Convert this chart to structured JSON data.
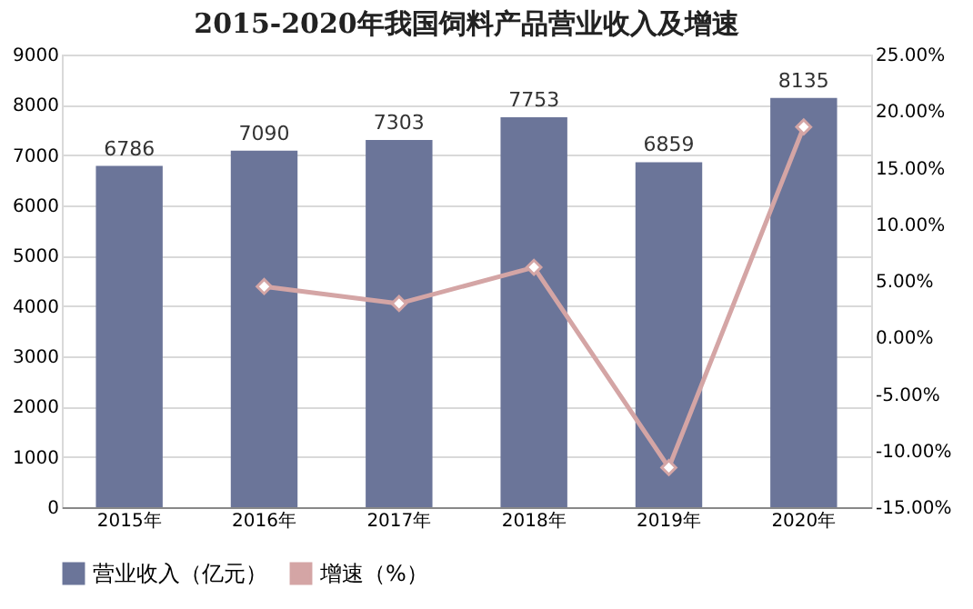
{
  "chart_data": {
    "type": "bar",
    "title": "2015-2020年我国饲料产品营业收入及增速",
    "categories": [
      "2015年",
      "2016年",
      "2017年",
      "2018年",
      "2019年",
      "2020年"
    ],
    "series": [
      {
        "name": "营业收入（亿元）",
        "color": "#6b7599",
        "values": [
          6786,
          7090,
          7303,
          7753,
          6859,
          8135
        ],
        "value_labels": [
          "6786",
          "7090",
          "7303",
          "7753",
          "6859",
          "8135"
        ]
      },
      {
        "name": "增速（%）",
        "type": "line",
        "axis": "y2",
        "color": "#d4a5a5",
        "marker": "diamond",
        "values": [
          null,
          4.5,
          3.0,
          6.2,
          -11.5,
          18.6
        ]
      }
    ],
    "ylim": [
      0,
      9000
    ],
    "yticks": [
      0,
      1000,
      2000,
      3000,
      4000,
      5000,
      6000,
      7000,
      8000,
      9000
    ],
    "y2lim": [
      -15,
      25
    ],
    "y2ticks": [
      {
        "value": -15,
        "label": "-15.00%"
      },
      {
        "value": -10,
        "label": "-10.00%"
      },
      {
        "value": -5,
        "label": "-5.00%"
      },
      {
        "value": 0,
        "label": "0.00%"
      },
      {
        "value": 5,
        "label": "5.00%"
      },
      {
        "value": 10,
        "label": "10.00%"
      },
      {
        "value": 15,
        "label": "15.00%"
      },
      {
        "value": 20,
        "label": "20.00%"
      },
      {
        "value": 25,
        "label": "25.00%"
      }
    ],
    "grid": "y",
    "legend": "bottom"
  }
}
